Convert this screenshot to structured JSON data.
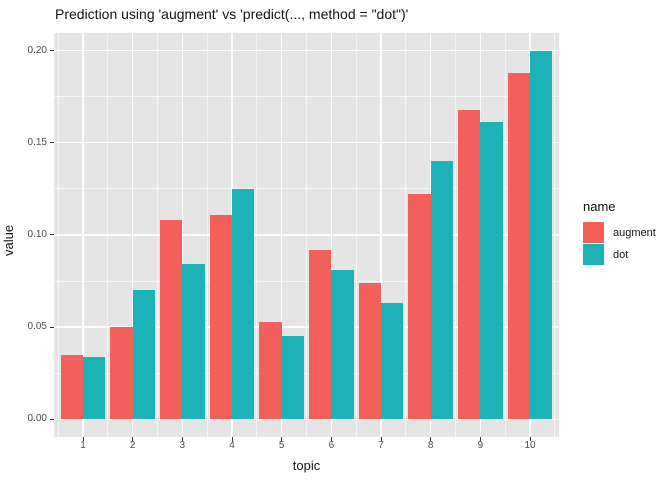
{
  "title": "Prediction using 'augment' vs 'predict(..., method = \"dot\")'",
  "chart_data": {
    "type": "bar",
    "title": "Prediction using 'augment' vs 'predict(..., method = \"dot\")'",
    "xlabel": "topic",
    "ylabel": "value",
    "categories": [
      "1",
      "2",
      "3",
      "4",
      "5",
      "6",
      "7",
      "8",
      "9",
      "10"
    ],
    "series": [
      {
        "name": "augment",
        "color": "#F3605B",
        "values": [
          0.035,
          0.05,
          0.108,
          0.111,
          0.053,
          0.092,
          0.074,
          0.122,
          0.168,
          0.188
        ]
      },
      {
        "name": "dot",
        "color": "#1BB3B7",
        "values": [
          0.034,
          0.07,
          0.084,
          0.125,
          0.045,
          0.081,
          0.063,
          0.14,
          0.161,
          0.2
        ]
      }
    ],
    "y_ticks": [
      "0.00",
      "0.05",
      "0.10",
      "0.15",
      "0.20"
    ],
    "y_tick_values": [
      0,
      0.05,
      0.1,
      0.15,
      0.2
    ],
    "y_minor_values": [
      0.025,
      0.075,
      0.125,
      0.175
    ],
    "ylim": [
      0,
      0.21
    ],
    "legend_title": "name",
    "legend_position": "right",
    "grid": "major+minor",
    "panel_bg": "#E5E5E5",
    "grid_color": "#FFFFFF",
    "axis_text_color": "#4D4D4D"
  }
}
